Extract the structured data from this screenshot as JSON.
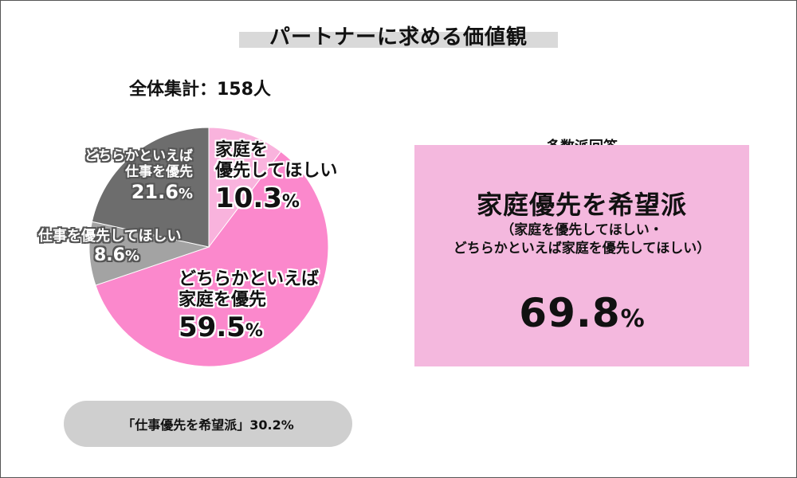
{
  "title": "パートナーに求める価値観",
  "total_label": "全体集計：158人",
  "chart_data": {
    "type": "pie",
    "title": "パートナーに求める価値観",
    "subtitle": "全体集計：158人",
    "slices": [
      {
        "label_lines": [
          "家庭を",
          "優先してほしい"
        ],
        "value": 10.3,
        "value_text": "10.3",
        "color": "#f9b3dd"
      },
      {
        "label_lines": [
          "どちらかといえば",
          "家庭を優先"
        ],
        "value": 59.5,
        "value_text": "59.5",
        "color": "#fb88cc"
      },
      {
        "label_lines": [
          "仕事を優先してほしい"
        ],
        "value": 8.6,
        "value_text": "8.6",
        "color": "#a3a3a3"
      },
      {
        "label_lines": [
          "どちらかといえば",
          "仕事を優先"
        ],
        "value": 21.6,
        "value_text": "21.6",
        "color": "#6d6d6d"
      }
    ],
    "percent_sign": "%"
  },
  "work_pill": "「仕事優先を希望派」30.2%",
  "majority": {
    "heading": "多数派回答",
    "title": "家庭優先を希望派",
    "sub_line1": "（家庭を優先してほしい・",
    "sub_line2": "どちらかといえば家庭を優先してほしい）",
    "value": "69.8",
    "sign": "%"
  }
}
